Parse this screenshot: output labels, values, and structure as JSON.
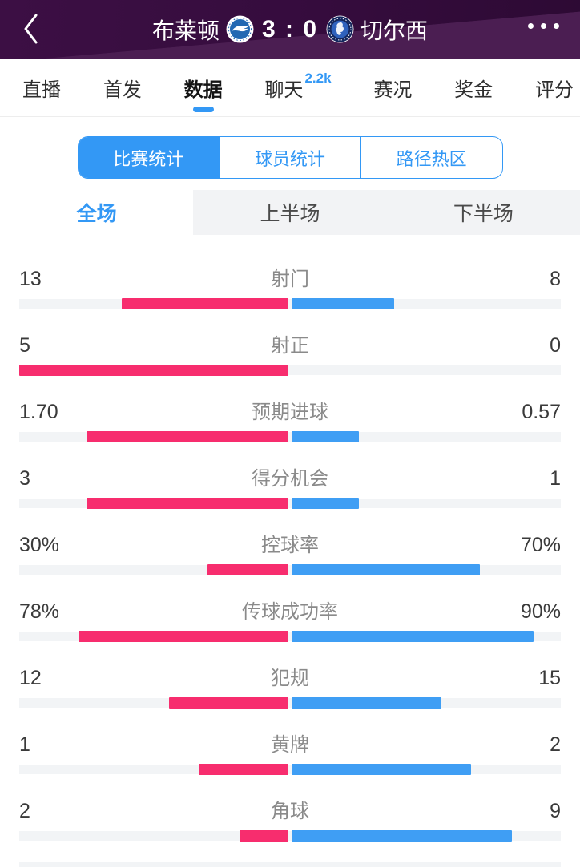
{
  "colors": {
    "accent_blue": "#3398f5",
    "bar_blue": "#3f9ef4",
    "bar_pink": "#f72d6e",
    "track_gray": "#f2f4f6",
    "header_dark": "#350c3d",
    "header_light": "#4b1e52"
  },
  "header": {
    "back_icon": "chevron-left",
    "home_team": "布莱顿",
    "home_crest_icon": "brighton-crest",
    "score": "3 : 0",
    "away_crest_icon": "chelsea-crest",
    "away_team": "切尔西",
    "menu_icon": "ellipsis-menu"
  },
  "tabbar": {
    "items": [
      {
        "name": "live",
        "label": "直播",
        "active": false
      },
      {
        "name": "lineup",
        "label": "首发",
        "active": false
      },
      {
        "name": "data",
        "label": "数据",
        "active": true
      },
      {
        "name": "chat",
        "label": "聊天",
        "active": false,
        "badge": "2.2k"
      },
      {
        "name": "events",
        "label": "赛况",
        "active": false
      },
      {
        "name": "bonus",
        "label": "奖金",
        "active": false
      },
      {
        "name": "rating",
        "label": "评分",
        "active": false
      }
    ]
  },
  "segmented": {
    "items": [
      {
        "name": "match-stats",
        "label": "比赛统计",
        "active": true
      },
      {
        "name": "player-stats",
        "label": "球员统计",
        "active": false
      },
      {
        "name": "path-heatmap",
        "label": "路径热区",
        "active": false
      }
    ]
  },
  "periods": {
    "items": [
      {
        "name": "full-match",
        "label": "全场",
        "active": true
      },
      {
        "name": "first-half",
        "label": "上半场",
        "active": false
      },
      {
        "name": "second-half",
        "label": "下半场",
        "active": false
      }
    ]
  },
  "stats": {
    "rows": [
      {
        "label": "射门",
        "home": "13",
        "away": "8",
        "home_value": 13,
        "away_value": 8,
        "scale": "sum"
      },
      {
        "label": "射正",
        "home": "5",
        "away": "0",
        "home_value": 5,
        "away_value": 0,
        "scale": "sum"
      },
      {
        "label": "预期进球",
        "home": "1.70",
        "away": "0.57",
        "home_value": 1.7,
        "away_value": 0.57,
        "scale": "sum"
      },
      {
        "label": "得分机会",
        "home": "3",
        "away": "1",
        "home_value": 3,
        "away_value": 1,
        "scale": "sum"
      },
      {
        "label": "控球率",
        "home": "30%",
        "away": "70%",
        "home_value": 30,
        "away_value": 70,
        "scale": "percent"
      },
      {
        "label": "传球成功率",
        "home": "78%",
        "away": "90%",
        "home_value": 78,
        "away_value": 90,
        "scale": "percent"
      },
      {
        "label": "犯规",
        "home": "12",
        "away": "15",
        "home_value": 12,
        "away_value": 15,
        "scale": "sum"
      },
      {
        "label": "黄牌",
        "home": "1",
        "away": "2",
        "home_value": 1,
        "away_value": 2,
        "scale": "sum"
      },
      {
        "label": "角球",
        "home": "2",
        "away": "9",
        "home_value": 2,
        "away_value": 9,
        "scale": "sum"
      }
    ]
  }
}
